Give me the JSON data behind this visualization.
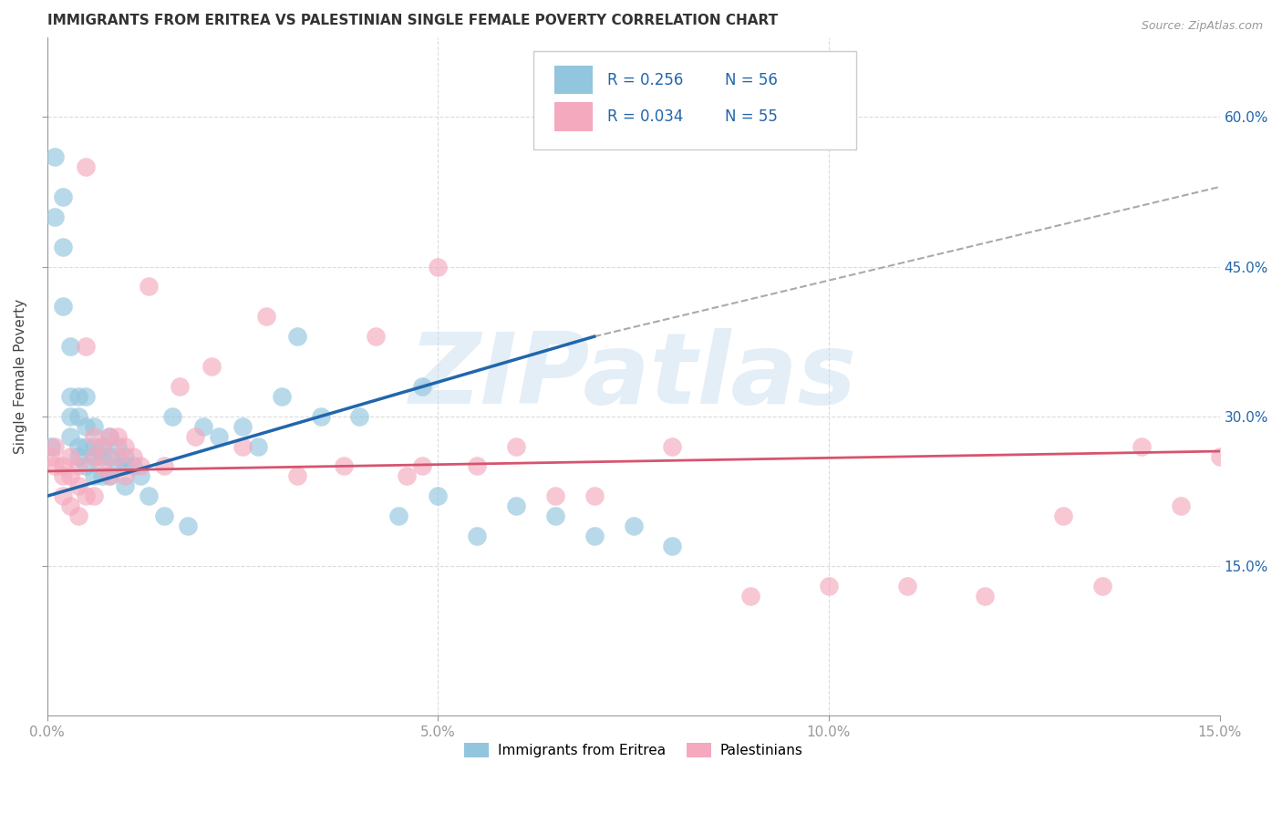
{
  "title": "IMMIGRANTS FROM ERITREA VS PALESTINIAN SINGLE FEMALE POVERTY CORRELATION CHART",
  "source": "Source: ZipAtlas.com",
  "ylabel": "Single Female Poverty",
  "xlim": [
    0,
    0.15
  ],
  "ylim": [
    0.0,
    0.68
  ],
  "xticks": [
    0.0,
    0.05,
    0.1,
    0.15
  ],
  "xticklabels": [
    "0.0%",
    "",
    "",
    ""
  ],
  "xtick_outside": [
    "0.0%",
    "5.0%",
    "10.0%",
    "15.0%"
  ],
  "yticks_right": [
    0.15,
    0.3,
    0.45,
    0.6
  ],
  "yticklabels_right": [
    "15.0%",
    "30.0%",
    "45.0%",
    "60.0%"
  ],
  "blue_color": "#92c5de",
  "pink_color": "#f4a9be",
  "trend_blue": "#2166ac",
  "trend_pink": "#d6546e",
  "dash_color": "#aaaaaa",
  "watermark": "ZIPatlas",
  "watermark_color": "#c8dff0",
  "blue_scatter_x": [
    0.0005,
    0.001,
    0.001,
    0.002,
    0.002,
    0.002,
    0.003,
    0.003,
    0.003,
    0.003,
    0.004,
    0.004,
    0.004,
    0.004,
    0.005,
    0.005,
    0.005,
    0.005,
    0.006,
    0.006,
    0.006,
    0.006,
    0.007,
    0.007,
    0.007,
    0.008,
    0.008,
    0.008,
    0.009,
    0.009,
    0.01,
    0.01,
    0.01,
    0.011,
    0.012,
    0.013,
    0.015,
    0.016,
    0.018,
    0.02,
    0.022,
    0.025,
    0.027,
    0.03,
    0.032,
    0.035,
    0.04,
    0.045,
    0.048,
    0.05,
    0.055,
    0.06,
    0.065,
    0.07,
    0.075,
    0.08
  ],
  "blue_scatter_y": [
    0.27,
    0.56,
    0.5,
    0.52,
    0.47,
    0.41,
    0.37,
    0.32,
    0.3,
    0.28,
    0.32,
    0.3,
    0.27,
    0.26,
    0.32,
    0.29,
    0.27,
    0.25,
    0.29,
    0.27,
    0.26,
    0.24,
    0.27,
    0.26,
    0.24,
    0.28,
    0.26,
    0.24,
    0.27,
    0.25,
    0.26,
    0.25,
    0.23,
    0.25,
    0.24,
    0.22,
    0.2,
    0.3,
    0.19,
    0.29,
    0.28,
    0.29,
    0.27,
    0.32,
    0.38,
    0.3,
    0.3,
    0.2,
    0.33,
    0.22,
    0.18,
    0.21,
    0.2,
    0.18,
    0.19,
    0.17
  ],
  "pink_scatter_x": [
    0.0005,
    0.001,
    0.001,
    0.002,
    0.002,
    0.002,
    0.003,
    0.003,
    0.003,
    0.004,
    0.004,
    0.004,
    0.005,
    0.005,
    0.005,
    0.006,
    0.006,
    0.006,
    0.007,
    0.007,
    0.008,
    0.008,
    0.009,
    0.009,
    0.01,
    0.01,
    0.011,
    0.012,
    0.013,
    0.015,
    0.017,
    0.019,
    0.021,
    0.025,
    0.028,
    0.032,
    0.038,
    0.042,
    0.046,
    0.048,
    0.05,
    0.055,
    0.06,
    0.065,
    0.07,
    0.08,
    0.09,
    0.1,
    0.11,
    0.12,
    0.13,
    0.135,
    0.14,
    0.145,
    0.15
  ],
  "pink_scatter_y": [
    0.26,
    0.27,
    0.25,
    0.25,
    0.24,
    0.22,
    0.26,
    0.24,
    0.21,
    0.25,
    0.23,
    0.2,
    0.55,
    0.37,
    0.22,
    0.28,
    0.26,
    0.22,
    0.27,
    0.25,
    0.28,
    0.24,
    0.28,
    0.26,
    0.27,
    0.24,
    0.26,
    0.25,
    0.43,
    0.25,
    0.33,
    0.28,
    0.35,
    0.27,
    0.4,
    0.24,
    0.25,
    0.38,
    0.24,
    0.25,
    0.45,
    0.25,
    0.27,
    0.22,
    0.22,
    0.27,
    0.12,
    0.13,
    0.13,
    0.12,
    0.2,
    0.13,
    0.27,
    0.21,
    0.26
  ],
  "blue_trend_x": [
    0.0,
    0.07
  ],
  "blue_trend_y": [
    0.22,
    0.38
  ],
  "pink_trend_x": [
    0.0,
    0.15
  ],
  "pink_trend_y": [
    0.245,
    0.265
  ],
  "dash_trend_x": [
    0.07,
    0.15
  ],
  "dash_trend_y": [
    0.38,
    0.53
  ],
  "background_color": "#ffffff",
  "grid_color": "#cccccc",
  "title_fontsize": 11,
  "ylabel_fontsize": 11,
  "tick_fontsize": 11,
  "legend_label1": "Immigrants from Eritrea",
  "legend_label2": "Palestinians",
  "legend_r1": "R = 0.256",
  "legend_n1": "N = 56",
  "legend_r2": "R = 0.034",
  "legend_n2": "N = 55"
}
